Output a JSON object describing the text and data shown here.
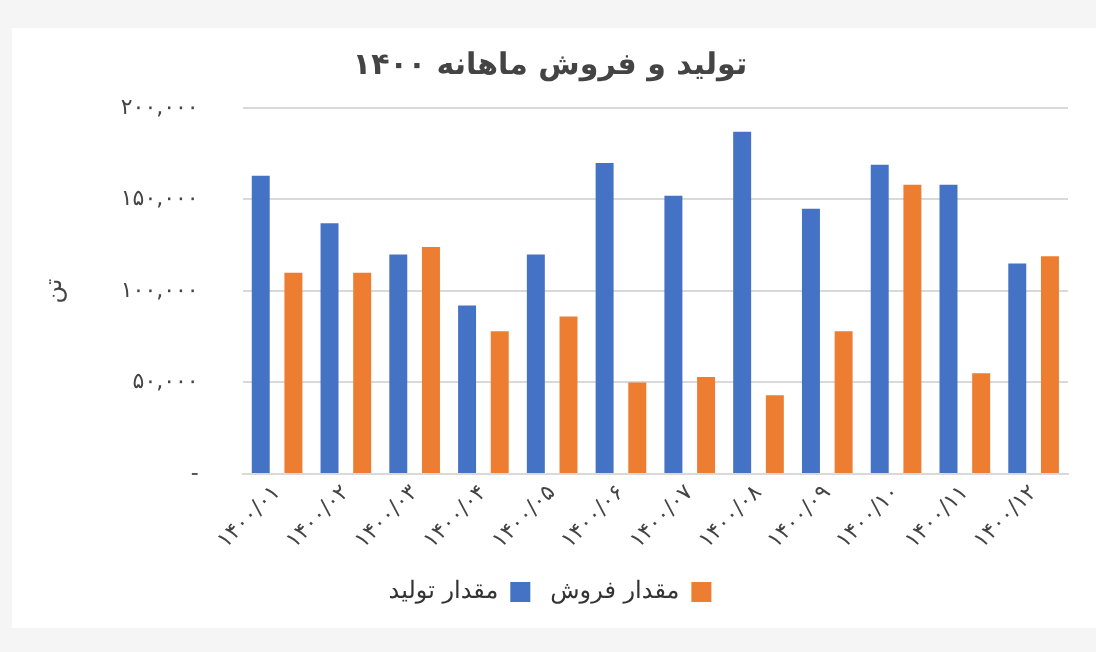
{
  "chart_data": {
    "type": "bar",
    "title": "تولید و فروش ماهانه ۱۴۰۰",
    "ylabel": "تن",
    "categories": [
      "۱۴۰۰/۰۱",
      "۱۴۰۰/۰۲",
      "۱۴۰۰/۰۳",
      "۱۴۰۰/۰۴",
      "۱۴۰۰/۰۵",
      "۱۴۰۰/۰۶",
      "۱۴۰۰/۰۷",
      "۱۴۰۰/۰۸",
      "۱۴۰۰/۰۹",
      "۱۴۰۰/۱۰",
      "۱۴۰۰/۱۱",
      "۱۴۰۰/۱۲"
    ],
    "series": [
      {
        "name": "مقدار تولید",
        "color": "#4472c4",
        "values": [
          163000,
          137000,
          120000,
          92000,
          120000,
          170000,
          152000,
          187000,
          145000,
          169000,
          158000,
          115000
        ]
      },
      {
        "name": "مقدار فروش",
        "color": "#ed7d31",
        "values": [
          110000,
          110000,
          124000,
          78000,
          86000,
          50000,
          53000,
          43000,
          78000,
          158000,
          55000,
          119000
        ]
      }
    ],
    "ylim": [
      0,
      200000
    ],
    "yticks": [
      {
        "value": 0,
        "label": "-"
      },
      {
        "value": 50000,
        "label": "۵۰,۰۰۰"
      },
      {
        "value": 100000,
        "label": "۱۰۰,۰۰۰"
      },
      {
        "value": 150000,
        "label": "۱۵۰,۰۰۰"
      },
      {
        "value": 200000,
        "label": "۲۰۰,۰۰۰"
      }
    ],
    "grid": "y",
    "legend": "bottom"
  }
}
